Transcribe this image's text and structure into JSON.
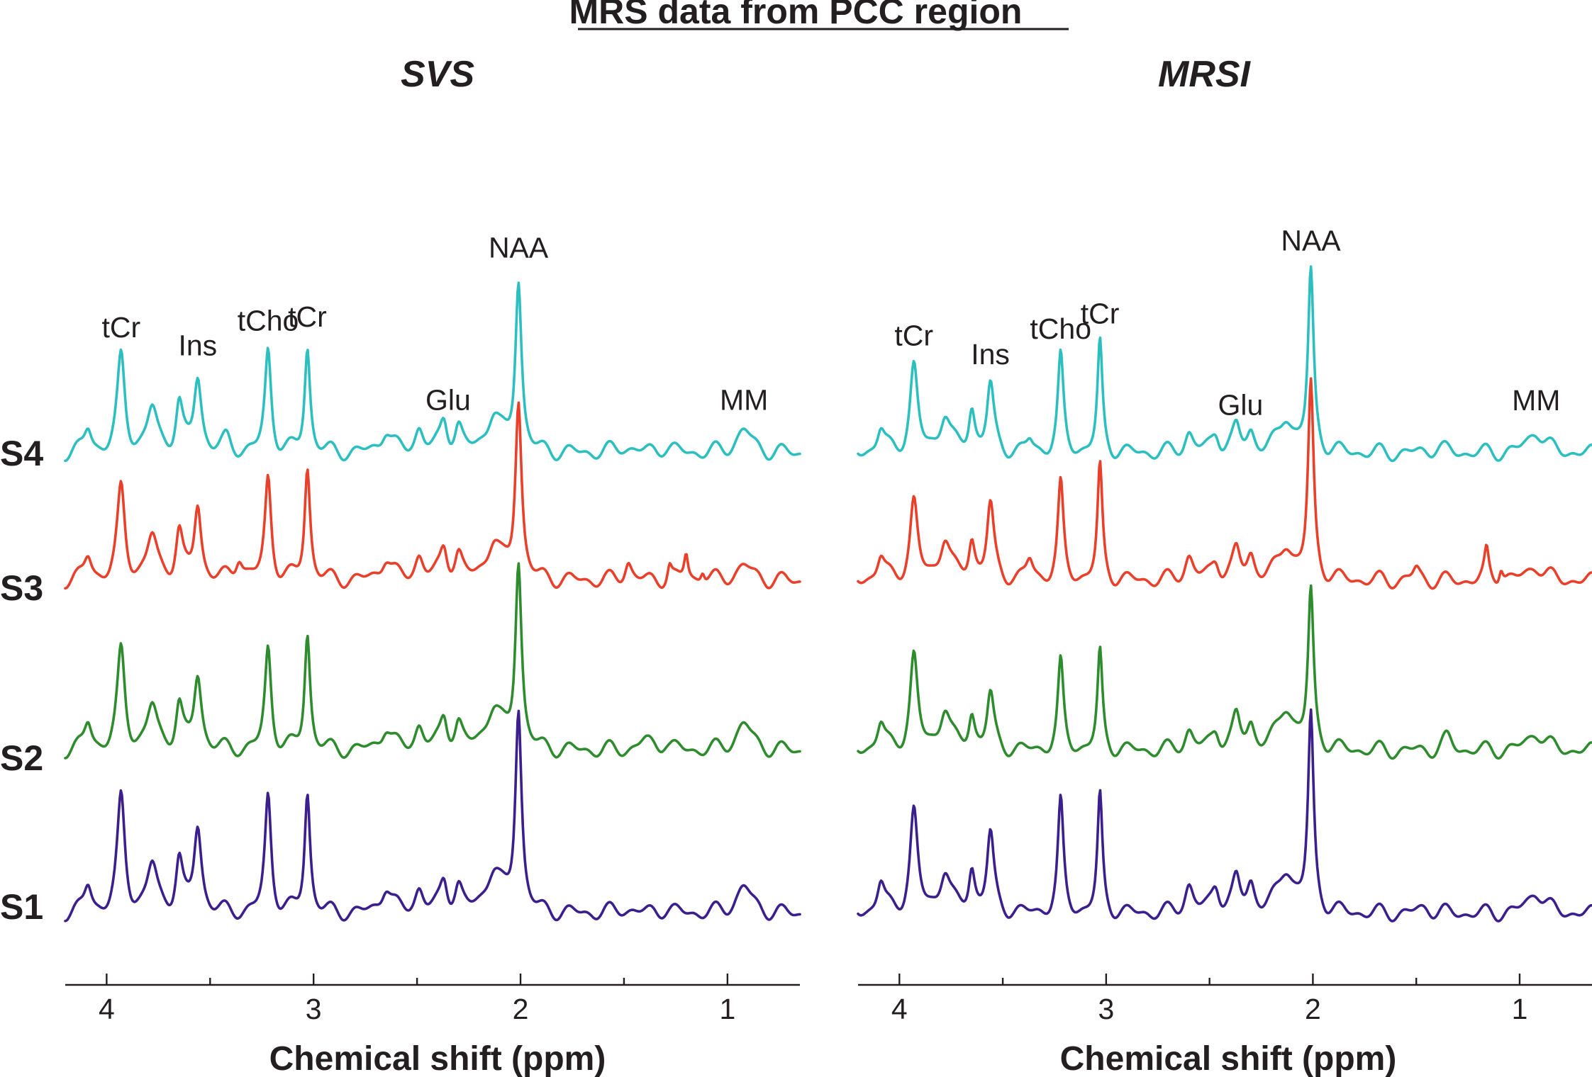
{
  "title": "MRS data from PCC region",
  "colors": {
    "S1": "#3b1f8c",
    "S2": "#2e8b2e",
    "S3": "#e8402a",
    "S4": "#2dbfbf",
    "text": "#231f20"
  },
  "rows": [
    "S4",
    "S3",
    "S2",
    "S1"
  ],
  "chart_data": [
    {
      "type": "line",
      "title": "SVS",
      "xlabel": "Chemical shift (ppm)",
      "ylabel": "",
      "xlim": [
        4.2,
        0.65
      ],
      "x_ticks": [
        4,
        3,
        2,
        1
      ],
      "x_tick_labels": [
        "4",
        "3",
        "2",
        "1"
      ],
      "peak_labels": [
        {
          "text": "tCr",
          "ppm": 3.93
        },
        {
          "text": "Ins",
          "ppm": 3.56
        },
        {
          "text": "tCho",
          "ppm": 3.22
        },
        {
          "text": "tCr",
          "ppm": 3.03
        },
        {
          "text": "Glu",
          "ppm": 2.35
        },
        {
          "text": "NAA",
          "ppm": 2.01
        },
        {
          "text": "MM",
          "ppm": 0.92
        }
      ],
      "series": [
        {
          "name": "S4",
          "peaks": [
            {
              "ppm": 4.09,
              "amp": 0.3,
              "w": 0.022
            },
            {
              "ppm": 3.93,
              "amp": 1.2,
              "w": 0.022
            },
            {
              "ppm": 3.78,
              "amp": 0.55,
              "w": 0.03
            },
            {
              "ppm": 3.65,
              "amp": 0.6,
              "w": 0.02
            },
            {
              "ppm": 3.56,
              "amp": 0.95,
              "w": 0.022
            },
            {
              "ppm": 3.42,
              "amp": 0.15,
              "w": 0.025
            },
            {
              "ppm": 3.22,
              "amp": 1.3,
              "w": 0.018
            },
            {
              "ppm": 3.03,
              "amp": 1.35,
              "w": 0.016
            },
            {
              "ppm": 2.65,
              "amp": 0.3,
              "w": 0.03
            },
            {
              "ppm": 2.49,
              "amp": 0.3,
              "w": 0.025
            },
            {
              "ppm": 2.37,
              "amp": 0.4,
              "w": 0.022
            },
            {
              "ppm": 2.3,
              "amp": 0.3,
              "w": 0.022
            },
            {
              "ppm": 2.13,
              "amp": 0.5,
              "w": 0.04
            },
            {
              "ppm": 2.01,
              "amp": 2.2,
              "w": 0.018
            },
            {
              "ppm": 1.5,
              "amp": 0.08,
              "w": 0.05
            },
            {
              "ppm": 1.3,
              "amp": 0.08,
              "w": 0.04
            },
            {
              "ppm": 0.92,
              "amp": 0.3,
              "w": 0.045
            }
          ]
        },
        {
          "name": "S3",
          "peaks": [
            {
              "ppm": 4.09,
              "amp": 0.3,
              "w": 0.022
            },
            {
              "ppm": 3.93,
              "amp": 1.15,
              "w": 0.022
            },
            {
              "ppm": 3.78,
              "amp": 0.55,
              "w": 0.03
            },
            {
              "ppm": 3.65,
              "amp": 0.6,
              "w": 0.02
            },
            {
              "ppm": 3.56,
              "amp": 0.95,
              "w": 0.02
            },
            {
              "ppm": 3.36,
              "amp": 0.3,
              "w": 0.022
            },
            {
              "ppm": 3.22,
              "amp": 1.3,
              "w": 0.018
            },
            {
              "ppm": 3.03,
              "amp": 1.45,
              "w": 0.016
            },
            {
              "ppm": 2.65,
              "amp": 0.3,
              "w": 0.03
            },
            {
              "ppm": 2.49,
              "amp": 0.3,
              "w": 0.025
            },
            {
              "ppm": 2.37,
              "amp": 0.4,
              "w": 0.022
            },
            {
              "ppm": 2.3,
              "amp": 0.3,
              "w": 0.022
            },
            {
              "ppm": 2.13,
              "amp": 0.5,
              "w": 0.04
            },
            {
              "ppm": 2.01,
              "amp": 2.3,
              "w": 0.018
            },
            {
              "ppm": 1.48,
              "amp": 0.25,
              "w": 0.02
            },
            {
              "ppm": 1.28,
              "amp": 0.2,
              "w": 0.012
            },
            {
              "ppm": 1.2,
              "amp": 0.35,
              "w": 0.012
            },
            {
              "ppm": 1.12,
              "amp": 0.15,
              "w": 0.012
            },
            {
              "ppm": 0.92,
              "amp": 0.2,
              "w": 0.045
            }
          ]
        },
        {
          "name": "S2",
          "peaks": [
            {
              "ppm": 4.09,
              "amp": 0.35,
              "w": 0.022
            },
            {
              "ppm": 3.93,
              "amp": 1.25,
              "w": 0.022
            },
            {
              "ppm": 3.78,
              "amp": 0.55,
              "w": 0.03
            },
            {
              "ppm": 3.65,
              "amp": 0.55,
              "w": 0.02
            },
            {
              "ppm": 3.56,
              "amp": 0.95,
              "w": 0.022
            },
            {
              "ppm": 3.22,
              "amp": 1.3,
              "w": 0.018
            },
            {
              "ppm": 3.03,
              "amp": 1.5,
              "w": 0.016
            },
            {
              "ppm": 2.65,
              "amp": 0.3,
              "w": 0.03
            },
            {
              "ppm": 2.49,
              "amp": 0.3,
              "w": 0.025
            },
            {
              "ppm": 2.37,
              "amp": 0.4,
              "w": 0.022
            },
            {
              "ppm": 2.3,
              "amp": 0.3,
              "w": 0.022
            },
            {
              "ppm": 2.13,
              "amp": 0.55,
              "w": 0.045
            },
            {
              "ppm": 2.01,
              "amp": 2.4,
              "w": 0.018
            },
            {
              "ppm": 1.4,
              "amp": 0.12,
              "w": 0.04
            },
            {
              "ppm": 1.3,
              "amp": 0.1,
              "w": 0.03
            },
            {
              "ppm": 0.92,
              "amp": 0.35,
              "w": 0.045
            }
          ]
        },
        {
          "name": "S1",
          "peaks": [
            {
              "ppm": 4.09,
              "amp": 0.35,
              "w": 0.022
            },
            {
              "ppm": 3.93,
              "amp": 1.45,
              "w": 0.022
            },
            {
              "ppm": 3.78,
              "amp": 0.6,
              "w": 0.03
            },
            {
              "ppm": 3.65,
              "amp": 0.65,
              "w": 0.02
            },
            {
              "ppm": 3.56,
              "amp": 1.1,
              "w": 0.022
            },
            {
              "ppm": 3.22,
              "amp": 1.5,
              "w": 0.018
            },
            {
              "ppm": 3.03,
              "amp": 1.55,
              "w": 0.016
            },
            {
              "ppm": 2.65,
              "amp": 0.35,
              "w": 0.03
            },
            {
              "ppm": 2.49,
              "amp": 0.3,
              "w": 0.025
            },
            {
              "ppm": 2.37,
              "amp": 0.4,
              "w": 0.022
            },
            {
              "ppm": 2.3,
              "amp": 0.3,
              "w": 0.022
            },
            {
              "ppm": 2.13,
              "amp": 0.55,
              "w": 0.045
            },
            {
              "ppm": 2.01,
              "amp": 2.6,
              "w": 0.018
            },
            {
              "ppm": 1.5,
              "amp": 0.06,
              "w": 0.05
            },
            {
              "ppm": 1.3,
              "amp": 0.06,
              "w": 0.04
            },
            {
              "ppm": 0.92,
              "amp": 0.35,
              "w": 0.045
            }
          ]
        }
      ]
    },
    {
      "type": "line",
      "title": "MRSI",
      "xlabel": "Chemical shift (ppm)",
      "ylabel": "",
      "xlim": [
        4.2,
        0.65
      ],
      "x_ticks": [
        4,
        3,
        2,
        1
      ],
      "x_tick_labels": [
        "4",
        "3",
        "2",
        "1"
      ],
      "peak_labels": [
        {
          "text": "tCr",
          "ppm": 3.93
        },
        {
          "text": "Ins",
          "ppm": 3.56
        },
        {
          "text": "tCho",
          "ppm": 3.22
        },
        {
          "text": "tCr",
          "ppm": 3.03
        },
        {
          "text": "Glu",
          "ppm": 2.35
        },
        {
          "text": "NAA",
          "ppm": 2.01
        },
        {
          "text": "MM",
          "ppm": 0.92
        }
      ],
      "series": [
        {
          "name": "S4",
          "peaks": [
            {
              "ppm": 4.09,
              "amp": 0.3,
              "w": 0.022
            },
            {
              "ppm": 3.93,
              "amp": 1.1,
              "w": 0.022
            },
            {
              "ppm": 3.78,
              "amp": 0.5,
              "w": 0.03
            },
            {
              "ppm": 3.65,
              "amp": 0.55,
              "w": 0.018
            },
            {
              "ppm": 3.56,
              "amp": 0.85,
              "w": 0.02
            },
            {
              "ppm": 3.37,
              "amp": 0.15,
              "w": 0.02
            },
            {
              "ppm": 3.22,
              "amp": 1.2,
              "w": 0.016
            },
            {
              "ppm": 3.03,
              "amp": 1.4,
              "w": 0.014
            },
            {
              "ppm": 2.6,
              "amp": 0.25,
              "w": 0.025
            },
            {
              "ppm": 2.47,
              "amp": 0.25,
              "w": 0.025
            },
            {
              "ppm": 2.37,
              "amp": 0.3,
              "w": 0.022
            },
            {
              "ppm": 2.3,
              "amp": 0.25,
              "w": 0.022
            },
            {
              "ppm": 2.13,
              "amp": 0.45,
              "w": 0.04
            },
            {
              "ppm": 2.01,
              "amp": 2.3,
              "w": 0.016
            },
            {
              "ppm": 1.4,
              "amp": 0.08,
              "w": 0.04
            },
            {
              "ppm": 0.92,
              "amp": 0.3,
              "w": 0.045
            }
          ]
        },
        {
          "name": "S3",
          "peaks": [
            {
              "ppm": 4.09,
              "amp": 0.3,
              "w": 0.022
            },
            {
              "ppm": 3.93,
              "amp": 1.0,
              "w": 0.022
            },
            {
              "ppm": 3.78,
              "amp": 0.55,
              "w": 0.03
            },
            {
              "ppm": 3.65,
              "amp": 0.5,
              "w": 0.018
            },
            {
              "ppm": 3.56,
              "amp": 0.95,
              "w": 0.02
            },
            {
              "ppm": 3.37,
              "amp": 0.25,
              "w": 0.02
            },
            {
              "ppm": 3.22,
              "amp": 1.2,
              "w": 0.016
            },
            {
              "ppm": 3.03,
              "amp": 1.45,
              "w": 0.014
            },
            {
              "ppm": 2.6,
              "amp": 0.3,
              "w": 0.025
            },
            {
              "ppm": 2.47,
              "amp": 0.25,
              "w": 0.025
            },
            {
              "ppm": 2.37,
              "amp": 0.35,
              "w": 0.022
            },
            {
              "ppm": 2.3,
              "amp": 0.3,
              "w": 0.022
            },
            {
              "ppm": 2.13,
              "amp": 0.45,
              "w": 0.04
            },
            {
              "ppm": 2.01,
              "amp": 2.5,
              "w": 0.016
            },
            {
              "ppm": 1.5,
              "amp": 0.15,
              "w": 0.02
            },
            {
              "ppm": 1.16,
              "amp": 0.35,
              "w": 0.012
            },
            {
              "ppm": 1.09,
              "amp": 0.2,
              "w": 0.012
            },
            {
              "ppm": 0.92,
              "amp": 0.2,
              "w": 0.045
            }
          ]
        },
        {
          "name": "S2",
          "peaks": [
            {
              "ppm": 4.09,
              "amp": 0.35,
              "w": 0.022
            },
            {
              "ppm": 3.93,
              "amp": 1.2,
              "w": 0.022
            },
            {
              "ppm": 3.78,
              "amp": 0.55,
              "w": 0.03
            },
            {
              "ppm": 3.65,
              "amp": 0.45,
              "w": 0.018
            },
            {
              "ppm": 3.56,
              "amp": 0.7,
              "w": 0.02
            },
            {
              "ppm": 3.22,
              "amp": 1.1,
              "w": 0.016
            },
            {
              "ppm": 3.03,
              "amp": 1.25,
              "w": 0.014
            },
            {
              "ppm": 2.6,
              "amp": 0.25,
              "w": 0.025
            },
            {
              "ppm": 2.47,
              "amp": 0.25,
              "w": 0.025
            },
            {
              "ppm": 2.37,
              "amp": 0.4,
              "w": 0.022
            },
            {
              "ppm": 2.3,
              "amp": 0.3,
              "w": 0.022
            },
            {
              "ppm": 2.13,
              "amp": 0.55,
              "w": 0.045
            },
            {
              "ppm": 2.01,
              "amp": 2.0,
              "w": 0.016
            },
            {
              "ppm": 1.35,
              "amp": 0.15,
              "w": 0.03
            },
            {
              "ppm": 0.92,
              "amp": 0.25,
              "w": 0.045
            }
          ]
        },
        {
          "name": "S1",
          "peaks": [
            {
              "ppm": 4.09,
              "amp": 0.4,
              "w": 0.022
            },
            {
              "ppm": 3.93,
              "amp": 1.3,
              "w": 0.022
            },
            {
              "ppm": 3.78,
              "amp": 0.55,
              "w": 0.03
            },
            {
              "ppm": 3.65,
              "amp": 0.55,
              "w": 0.018
            },
            {
              "ppm": 3.56,
              "amp": 1.0,
              "w": 0.02
            },
            {
              "ppm": 3.22,
              "amp": 1.4,
              "w": 0.016
            },
            {
              "ppm": 3.03,
              "amp": 1.5,
              "w": 0.014
            },
            {
              "ppm": 2.6,
              "amp": 0.35,
              "w": 0.025
            },
            {
              "ppm": 2.47,
              "amp": 0.35,
              "w": 0.025
            },
            {
              "ppm": 2.37,
              "amp": 0.4,
              "w": 0.022
            },
            {
              "ppm": 2.3,
              "amp": 0.35,
              "w": 0.022
            },
            {
              "ppm": 2.13,
              "amp": 0.55,
              "w": 0.045
            },
            {
              "ppm": 2.01,
              "amp": 2.5,
              "w": 0.016
            },
            {
              "ppm": 1.45,
              "amp": 0.08,
              "w": 0.04
            },
            {
              "ppm": 0.92,
              "amp": 0.3,
              "w": 0.045
            }
          ]
        }
      ]
    }
  ]
}
